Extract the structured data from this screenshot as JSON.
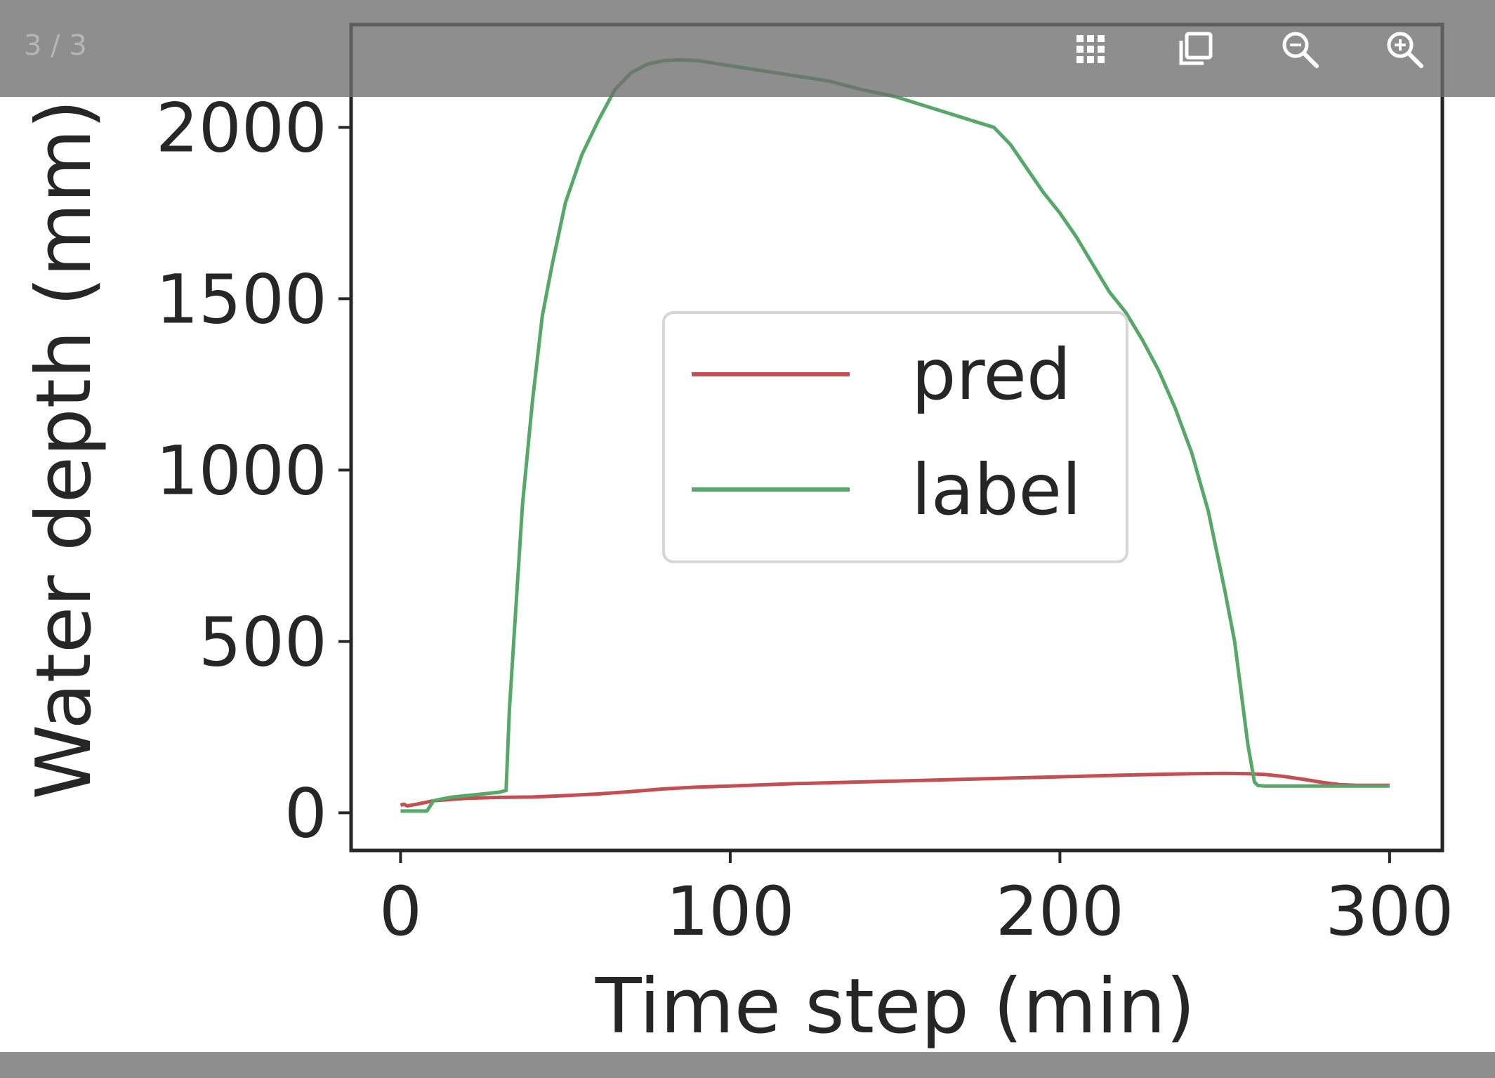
{
  "viewer": {
    "page_counter": "3 / 3",
    "toolbar": [
      {
        "name": "grid-view-button",
        "icon": "grid-icon"
      },
      {
        "name": "fit-page-button",
        "icon": "copy-pages-icon"
      },
      {
        "name": "zoom-out-button",
        "icon": "zoom-out-icon"
      },
      {
        "name": "zoom-in-button",
        "icon": "zoom-in-icon"
      }
    ]
  },
  "chart_data": {
    "type": "line",
    "title": "",
    "xlabel": "Time step (min)",
    "ylabel": "Water depth (mm)",
    "xlim": [
      -15,
      316
    ],
    "ylim": [
      -110,
      2300
    ],
    "xticks": [
      0,
      100,
      200,
      300
    ],
    "xtick_labels": [
      "0",
      "100",
      "200",
      "300"
    ],
    "yticks": [
      0,
      500,
      1000,
      1500,
      2000
    ],
    "ytick_labels": [
      "0",
      "500",
      "1000",
      "1500",
      "2000"
    ],
    "grid": false,
    "legend": {
      "position": "center",
      "entries": [
        "pred",
        "label"
      ]
    },
    "series": [
      {
        "name": "pred",
        "color": "#c44e52",
        "x": [
          0,
          1,
          2,
          5,
          10,
          20,
          30,
          40,
          50,
          60,
          70,
          80,
          90,
          100,
          120,
          140,
          160,
          180,
          200,
          220,
          240,
          250,
          257,
          262,
          268,
          275,
          280,
          285,
          290,
          295,
          300
        ],
        "y": [
          22,
          25,
          20,
          25,
          35,
          42,
          45,
          46,
          50,
          55,
          62,
          70,
          75,
          78,
          85,
          90,
          95,
          100,
          105,
          110,
          114,
          115,
          114,
          112,
          106,
          96,
          88,
          82,
          80,
          80,
          80
        ]
      },
      {
        "name": "label",
        "color": "#55a868",
        "x": [
          0,
          5,
          8,
          10,
          15,
          20,
          25,
          30,
          32,
          33,
          35,
          37,
          40,
          43,
          46,
          50,
          55,
          60,
          65,
          70,
          75,
          80,
          85,
          90,
          100,
          110,
          120,
          130,
          140,
          150,
          160,
          170,
          180,
          185,
          190,
          195,
          200,
          205,
          210,
          215,
          220,
          225,
          230,
          235,
          240,
          245,
          250,
          253,
          255,
          257,
          259,
          260,
          262,
          270,
          280,
          290,
          300
        ],
        "y": [
          5,
          5,
          5,
          35,
          45,
          50,
          55,
          60,
          65,
          300,
          600,
          900,
          1200,
          1450,
          1600,
          1780,
          1920,
          2020,
          2110,
          2160,
          2185,
          2195,
          2197,
          2195,
          2180,
          2165,
          2150,
          2135,
          2110,
          2090,
          2060,
          2030,
          2000,
          1950,
          1880,
          1810,
          1750,
          1680,
          1600,
          1520,
          1460,
          1380,
          1290,
          1180,
          1050,
          880,
          650,
          500,
          350,
          200,
          90,
          80,
          78,
          78,
          78,
          78,
          78
        ]
      }
    ]
  }
}
